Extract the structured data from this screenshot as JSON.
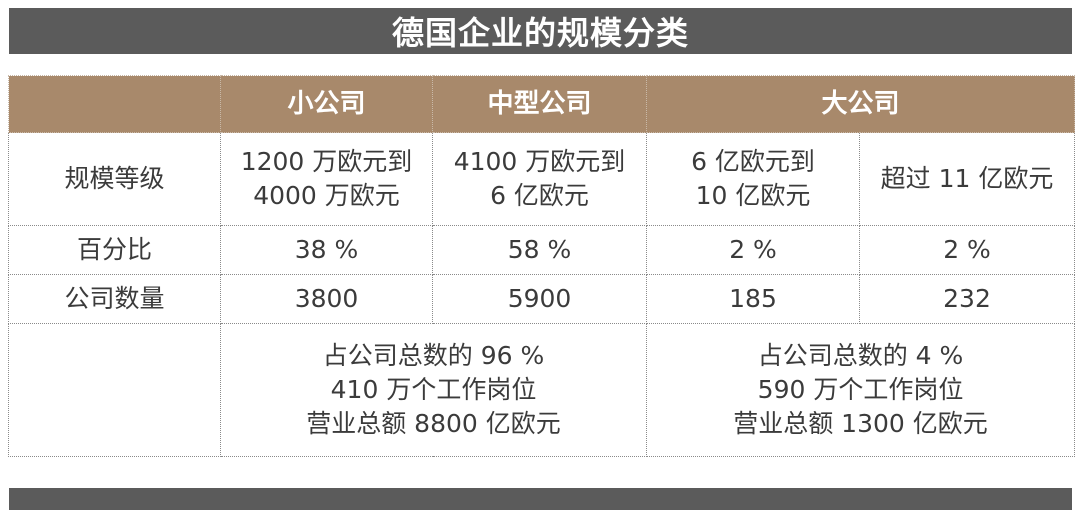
{
  "title": "德国企业的规模分类",
  "columns": {
    "corner": "",
    "small": "小公司",
    "medium": "中型公司",
    "large": "大公司"
  },
  "rows": {
    "scale": {
      "label": "规模等级",
      "small": [
        "1200 万欧元到",
        "4000 万欧元"
      ],
      "medium": [
        "4100 万欧元到",
        "6 亿欧元"
      ],
      "large_a": [
        "6 亿欧元到",
        "10 亿欧元"
      ],
      "large_b": "超过 11 亿欧元"
    },
    "percent": {
      "label": "百分比",
      "small": "38 %",
      "medium": "58 %",
      "large_a": "2 %",
      "large_b": "2 %"
    },
    "count": {
      "label": "公司数量",
      "small": "3800",
      "medium": "5900",
      "large_a": "185",
      "large_b": "232"
    },
    "summary": {
      "label": "",
      "small_medium": [
        "占公司总数的 96 %",
        "410 万个工作岗位",
        "营业总额 8800 亿欧元"
      ],
      "large": [
        "占公司总数的 4 %",
        "590 万个工作岗位",
        "营业总额 1300 亿欧元"
      ]
    }
  },
  "colors": {
    "title_bar": "#5b5b5b",
    "header_bg": "#a8896b",
    "header_text": "#ffffff",
    "body_text": "#3b3b3b"
  }
}
